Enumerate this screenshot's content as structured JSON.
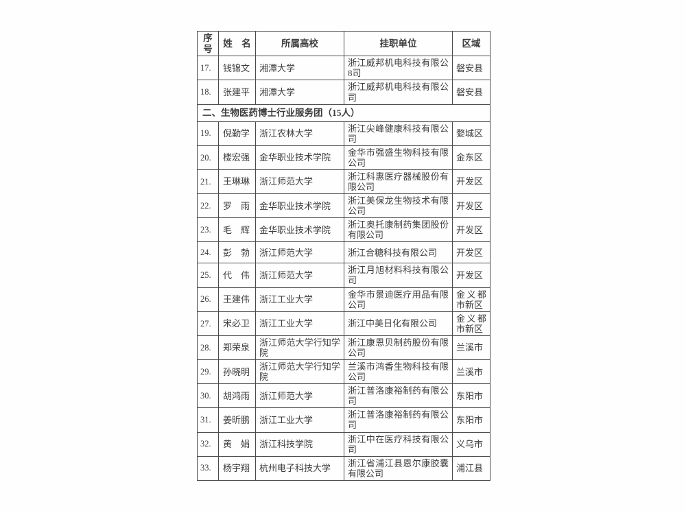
{
  "table": {
    "headers": [
      "序号",
      "姓　名",
      "所属高校",
      "挂职单位",
      "区域"
    ],
    "rows": [
      {
        "no": "17.",
        "name": "钱锦文",
        "university": "湘潭大学",
        "company": "浙江威邦机电科技有限公8司",
        "region": "磐安县"
      },
      {
        "no": "18.",
        "name": "张建平",
        "university": "湘潭大学",
        "company": "浙江威邦机电科技有限公司",
        "region": "磐安县"
      },
      {
        "section": "二、生物医药博士行业服务团（15人）"
      },
      {
        "no": "19.",
        "name": "倪勤学",
        "university": "浙江农林大学",
        "company": "浙江尖峰健康科技有限公司",
        "region": "婺城区"
      },
      {
        "no": "20.",
        "name": "楼宏强",
        "university": "金华职业技术学院",
        "company": "金华市强盛生物科技有限公司",
        "region": "金东区"
      },
      {
        "no": "21.",
        "name": "王琳琳",
        "university": "浙江师范大学",
        "company": "浙江科惠医疗器械股份有限公司",
        "region": "开发区"
      },
      {
        "no": "22.",
        "name": "罗　雨",
        "university": "金华职业技术学院",
        "company": "浙江美保龙生物技术有限公司",
        "region": "开发区"
      },
      {
        "no": "23.",
        "name": "毛　辉",
        "university": "金华职业技术学院",
        "company": "浙江奥托康制药集团股份有限公司",
        "region": "开发区"
      },
      {
        "no": "24.",
        "name": "彭　勃",
        "university": "浙江师范大学",
        "company": "浙江合糖科技有限公司",
        "region": "开发区"
      },
      {
        "no": "25.",
        "name": "代　伟",
        "university": "浙江师范大学",
        "company": "浙江月旭材料科技有限公司",
        "region": "开发区"
      },
      {
        "no": "26.",
        "name": "王建伟",
        "university": "浙江工业大学",
        "company": "金华市景迪医疗用品有限公司",
        "region": "金义都市新区"
      },
      {
        "no": "27.",
        "name": "宋必卫",
        "university": "浙江工业大学",
        "company": "浙江中美日化有限公司",
        "region": "金义都市新区"
      },
      {
        "no": "28.",
        "name": "郑荣泉",
        "university": "浙江师范大学行知学院",
        "company": "浙江康恩贝制药股份有限公司",
        "region": "兰溪市"
      },
      {
        "no": "29.",
        "name": "孙晓明",
        "university": "浙江师范大学行知学院",
        "company": "兰溪市鸿香生物科技有限公司",
        "region": "兰溪市"
      },
      {
        "no": "30.",
        "name": "胡鸿雨",
        "university": "浙江师范大学",
        "company": "浙江普洛康裕制药有限公司",
        "region": "东阳市"
      },
      {
        "no": "31.",
        "name": "姜昕鹏",
        "university": "浙江工业大学",
        "company": "浙江普洛康裕制药有限公司",
        "region": "东阳市"
      },
      {
        "no": "32.",
        "name": "黄　娟",
        "university": "浙江科技学院",
        "company": "浙江中在医疗科技有限公司",
        "region": "义乌市"
      },
      {
        "no": "33.",
        "name": "杨宇翔",
        "university": "杭州电子科技大学",
        "company": "浙江省浦江县恩尔康胶囊有限公司",
        "region": "浦江县"
      }
    ]
  },
  "colors": {
    "page_background": "#fefefe",
    "text": "#3d3d3d",
    "border": "#4a4a4a"
  }
}
